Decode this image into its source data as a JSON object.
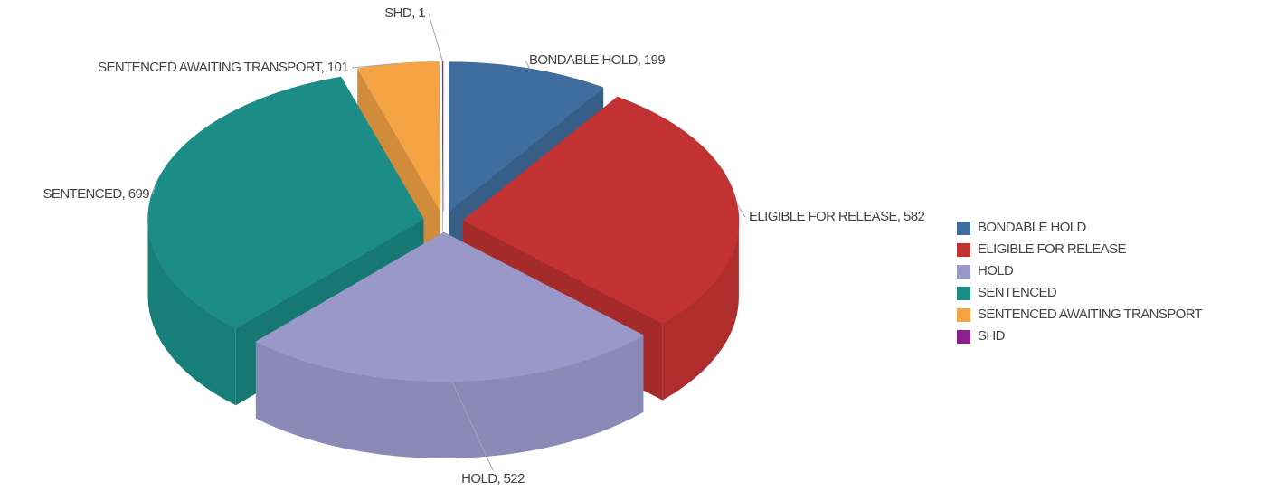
{
  "chart_data": {
    "type": "pie3d",
    "categories": [
      "BONDABLE HOLD",
      "ELIGIBLE FOR RELEASE",
      "HOLD",
      "SENTENCED",
      "SENTENCED AWAITING TRANSPORT",
      "SHD"
    ],
    "values": [
      199,
      582,
      522,
      699,
      101,
      1
    ],
    "value_labels": [
      "BONDABLE HOLD, 199",
      "ELIGIBLE FOR RELEASE, 582",
      "HOLD, 522",
      "SENTENCED, 699",
      "SENTENCED AWAITING TRANSPORT, 101",
      "SHD, 1"
    ],
    "colors": [
      "#3f6e9e",
      "#c23232",
      "#9a98c9",
      "#1b8c86",
      "#f5a445",
      "#8e1f8e"
    ],
    "legend": "right"
  }
}
